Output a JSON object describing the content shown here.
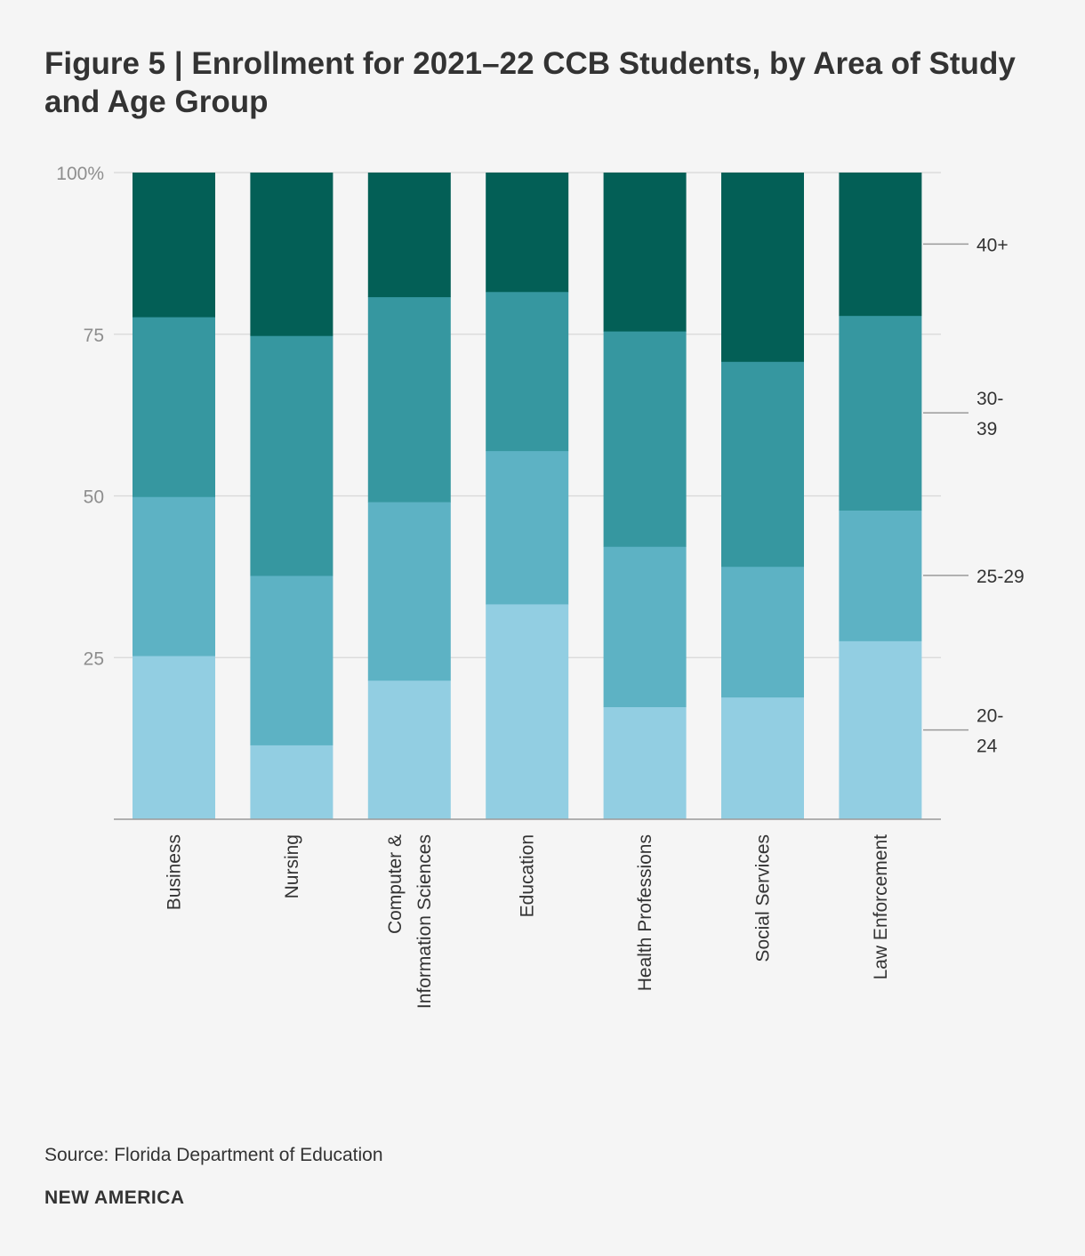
{
  "title": "Figure 5 | Enrollment for 2021–22 CCB Students, by Area of Study and Age Group",
  "source": "Source: Florida Department of Education",
  "brand": "NEW AMERICA",
  "colors": {
    "20-24": "#92cee2",
    "25-29": "#5db2c4",
    "30-39": "#3697a0",
    "40+": "#035f56",
    "gridline": "#d7d7d7",
    "axis": "#9a9a9a"
  },
  "chart_data": {
    "type": "bar",
    "stacked": true,
    "title": "Figure 5 | Enrollment for 2021–22 CCB Students, by Area of Study and Age Group",
    "xlabel": "",
    "ylabel": "",
    "ylim": [
      0,
      100
    ],
    "yticks": [
      {
        "value": 100,
        "label": "100%"
      },
      {
        "value": 75,
        "label": "75"
      },
      {
        "value": 50,
        "label": "50"
      },
      {
        "value": 25,
        "label": "25"
      }
    ],
    "categories": [
      [
        "Business"
      ],
      [
        "Nursing"
      ],
      [
        "Computer &",
        "Information Sciences"
      ],
      [
        "Education"
      ],
      [
        "Health Professions"
      ],
      [
        "Social Services"
      ],
      [
        "Law Enforcement"
      ]
    ],
    "series": [
      {
        "name": "20-24",
        "label_lines": [
          "20-",
          "24"
        ],
        "values": [
          25.3,
          11.5,
          21.5,
          33.3,
          17.4,
          18.9,
          27.6
        ]
      },
      {
        "name": "25-29",
        "label_lines": [
          "25-29"
        ],
        "values": [
          24.6,
          26.2,
          27.6,
          23.7,
          24.8,
          20.2,
          20.2
        ]
      },
      {
        "name": "30-39",
        "label_lines": [
          "30-",
          "39"
        ],
        "values": [
          27.8,
          37.1,
          31.7,
          24.6,
          33.3,
          31.7,
          30.1
        ]
      },
      {
        "name": "40+",
        "label_lines": [
          "40+"
        ],
        "values": [
          22.3,
          25.2,
          19.2,
          18.4,
          24.5,
          29.2,
          22.1
        ]
      }
    ],
    "legend_position": "right"
  }
}
